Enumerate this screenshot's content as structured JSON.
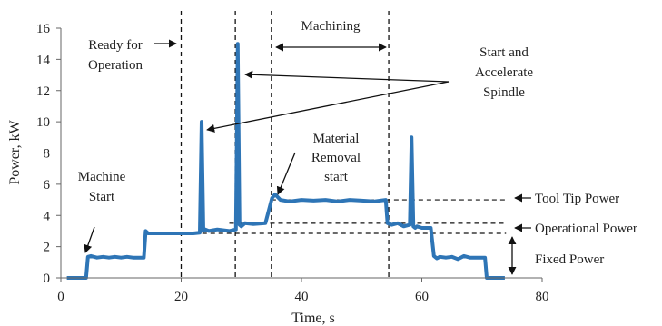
{
  "chart_data": {
    "type": "line",
    "xlabel": "Time, s",
    "ylabel": "Power, kW",
    "xlim": [
      0,
      80
    ],
    "ylim": [
      0,
      16
    ],
    "xticks": [
      0,
      20,
      40,
      60,
      80
    ],
    "yticks": [
      0,
      2,
      4,
      6,
      8,
      10,
      12,
      14,
      16
    ],
    "grid": false,
    "series_color": "#2E75B6",
    "series": [
      {
        "x": [
          1,
          4.2,
          4.5,
          5,
          6,
          7,
          8,
          9,
          10,
          11,
          12,
          13.8,
          14.1,
          14.5,
          16,
          18,
          20,
          22,
          23.1,
          23.4,
          23.7,
          24,
          24.6,
          26,
          28,
          29.1,
          29.4,
          29.7,
          30,
          30.6,
          32,
          34,
          35.1,
          35.6,
          36.5,
          38,
          40,
          42,
          44,
          46,
          48,
          50,
          52,
          54,
          54.3,
          55,
          56,
          57,
          58,
          58.3,
          58.6,
          58.9,
          59.2,
          60,
          61.5,
          62,
          62.5,
          63,
          64,
          65,
          66,
          67,
          68,
          70.5,
          70.8,
          73.8
        ],
        "values": [
          0,
          0,
          1.35,
          1.4,
          1.3,
          1.35,
          1.3,
          1.35,
          1.3,
          1.35,
          1.3,
          1.3,
          3.0,
          2.85,
          2.85,
          2.85,
          2.85,
          2.85,
          2.9,
          10.0,
          3.0,
          3.1,
          3.0,
          3.1,
          3.0,
          3.1,
          15.0,
          3.4,
          3.3,
          3.5,
          3.45,
          3.5,
          5.1,
          5.35,
          5.0,
          4.9,
          5.0,
          4.95,
          5.0,
          4.9,
          5.0,
          4.95,
          4.9,
          5.0,
          3.5,
          3.4,
          3.5,
          3.3,
          3.4,
          9.0,
          3.3,
          3.2,
          3.3,
          3.2,
          3.2,
          1.4,
          1.25,
          1.35,
          1.3,
          1.35,
          1.2,
          1.4,
          1.3,
          1.3,
          0,
          0
        ]
      }
    ],
    "vlines": [
      20,
      29,
      35,
      54.5
    ],
    "hlines": [
      {
        "y": 5.0,
        "x0": 35,
        "x1": 74
      },
      {
        "y": 3.5,
        "x0": 28,
        "x1": 74
      },
      {
        "y": 2.85,
        "x0": 14,
        "x1": 74
      }
    ],
    "annotations": {
      "machine_start": [
        "Machine",
        "Start"
      ],
      "ready": [
        "Ready for",
        "Operation"
      ],
      "machining": "Machining",
      "spindle": [
        "Start and",
        "Accelerate",
        "Spindle"
      ],
      "material": [
        "Material",
        "Removal",
        "start"
      ],
      "tool_tip": "Tool Tip Power",
      "operational": "Operational Power",
      "fixed": "Fixed Power"
    }
  }
}
